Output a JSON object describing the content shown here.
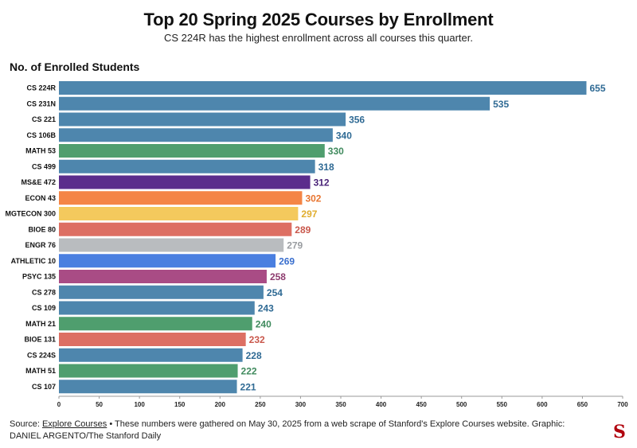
{
  "title": "Top 20 Spring 2025 Courses by Enrollment",
  "subtitle": "CS 224R has the highest enrollment across all courses this quarter.",
  "footer": {
    "source_prefix": "Source: ",
    "source_link": "Explore Courses",
    "note": " • These numbers were gathered on May 30, 2025 from a web scrape of Stanford's Explore Courses website. Graphic: DANIEL ARGENTO/The Stanford Daily"
  },
  "logo_text": "S",
  "chart_data": {
    "type": "bar",
    "orientation": "horizontal",
    "ylabel": "No. of Enrolled Students",
    "xlim": [
      0,
      700
    ],
    "xticks": [
      0,
      50,
      100,
      150,
      200,
      250,
      300,
      350,
      400,
      450,
      500,
      550,
      600,
      650,
      700
    ],
    "categories": [
      "CS 224R",
      "CS 231N",
      "CS 221",
      "CS 106B",
      "MATH 53",
      "CS 499",
      "MS&E 472",
      "ECON 43",
      "MGTECON 300",
      "BIOE 80",
      "ENGR 76",
      "ATHLETIC 10",
      "PSYC 135",
      "CS 278",
      "CS 109",
      "MATH 21",
      "BIOE 131",
      "CS 224S",
      "MATH 51",
      "CS 107"
    ],
    "values": [
      655,
      535,
      356,
      340,
      330,
      318,
      312,
      302,
      297,
      289,
      279,
      269,
      258,
      254,
      243,
      240,
      232,
      228,
      222,
      221
    ],
    "colors": [
      "#4e86ad",
      "#4e86ad",
      "#4e86ad",
      "#4e86ad",
      "#4f9e6e",
      "#4e86ad",
      "#5b2d8c",
      "#f48546",
      "#f4c95d",
      "#dd6f63",
      "#b9bcbf",
      "#4a7fe0",
      "#a94c85",
      "#4e86ad",
      "#4e86ad",
      "#4f9e6e",
      "#dd6f63",
      "#4e86ad",
      "#4f9e6e",
      "#4e86ad"
    ],
    "label_colors": [
      "#2f6a94",
      "#2f6a94",
      "#2f6a94",
      "#2f6a94",
      "#3f8a5d",
      "#2f6a94",
      "#4a2378",
      "#e8742f",
      "#e0ad2e",
      "#c9584c",
      "#9a9da1",
      "#3a6fce",
      "#8e3c6f",
      "#2f6a94",
      "#2f6a94",
      "#3f8a5d",
      "#c9584c",
      "#2f6a94",
      "#3f8a5d",
      "#2f6a94"
    ]
  }
}
